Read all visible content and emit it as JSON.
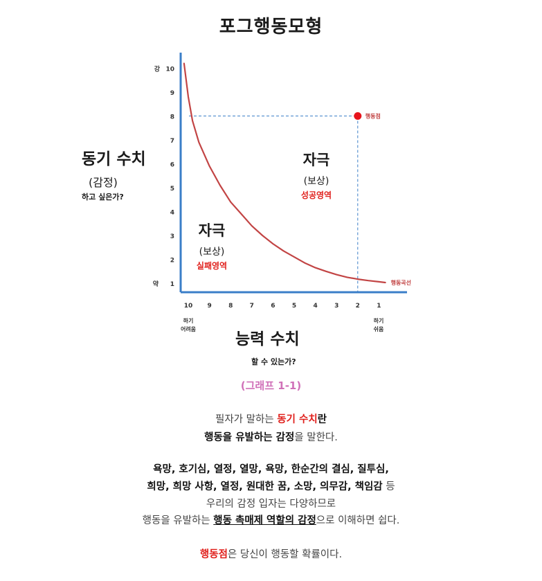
{
  "chart_data": {
    "type": "line",
    "title": "포그행동모형",
    "ylabel": "동기 수치",
    "ylabel_sub": "(감정)",
    "ylabel_question": "하고 싶은가?",
    "xlabel": "능력 수치",
    "xlabel_question": "할 수 있는가?",
    "y_ticks": [
      1,
      2,
      3,
      4,
      5,
      6,
      7,
      8,
      9,
      10
    ],
    "x_ticks": [
      10,
      9,
      8,
      7,
      6,
      5,
      4,
      3,
      2,
      1
    ],
    "y_high_label": "강",
    "y_low_label": "약",
    "x_left_label": [
      "하기",
      "어려움"
    ],
    "x_right_label": [
      "하기",
      "쉬움"
    ],
    "xlim": [
      10.5,
      0.5
    ],
    "ylim": [
      0.5,
      10.5
    ],
    "series": [
      {
        "name": "행동곡선",
        "x": [
          10.2,
          10.0,
          9.8,
          9.5,
          9.0,
          8.5,
          8.0,
          7.5,
          7.0,
          6.5,
          6.0,
          5.5,
          5.0,
          4.5,
          4.0,
          3.5,
          3.0,
          2.5,
          2.0,
          1.5,
          1.0,
          0.7
        ],
        "y": [
          10.2,
          8.8,
          7.8,
          6.9,
          5.9,
          5.1,
          4.4,
          3.9,
          3.4,
          3.0,
          2.65,
          2.35,
          2.1,
          1.85,
          1.65,
          1.5,
          1.36,
          1.25,
          1.17,
          1.11,
          1.06,
          1.03
        ]
      }
    ],
    "action_point": {
      "x": 2,
      "y": 8,
      "label": "행동점"
    },
    "regions": [
      {
        "title": "자극",
        "sub": "(보상)",
        "area": "성공영역"
      },
      {
        "title": "자극",
        "sub": "(보상)",
        "area": "실패영역"
      }
    ],
    "caption": "(그래프 1-1)",
    "colors": {
      "axis": "#3a7ec8",
      "curve": "#c24444",
      "point": "#e8141c",
      "caption": "#d070b8",
      "accent": "#e0201c"
    }
  },
  "text": {
    "l1_a": "필자가 말하는 ",
    "l1_b": "동기 수치",
    "l1_c": "란",
    "l2_a": "행동을 유발하는 감정",
    "l2_b": "을 말한다.",
    "l3": "욕망, 호기심, 열정, 열망, 욕망, 한순간의 결심, 질투심,",
    "l4_a": "희망, 희망 사항, 열정, 원대한 꿈, 소망, 의무감, 책임감",
    "l4_b": " 등",
    "l5": "우리의 감정 입자는 다양하므로",
    "l6_a": "행동을 유발하는 ",
    "l6_b": "행동 촉매제 역할의 감정",
    "l6_c": "으로 이해하면 쉽다.",
    "l7_a": "행동점",
    "l7_b": "은 당신이 행동할 확률이다."
  }
}
